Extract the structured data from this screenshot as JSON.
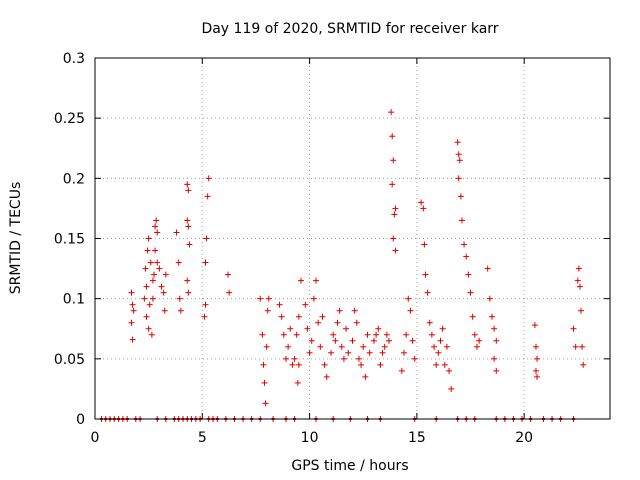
{
  "chart_data": {
    "type": "scatter",
    "title": "Day 119 of 2020, SRMTID for receiver karr",
    "xlabel": "GPS time / hours",
    "ylabel": "SRMTID / TECUs",
    "xlim": [
      0,
      24
    ],
    "ylim": [
      0,
      0.3
    ],
    "xticks": [
      0,
      5,
      10,
      15,
      20
    ],
    "xtick_labels": [
      "0",
      "5",
      "10",
      "15",
      "20"
    ],
    "yticks": [
      0,
      0.05,
      0.1,
      0.15,
      0.2,
      0.25,
      0.3
    ],
    "ytick_labels": [
      "0",
      "0.05",
      "0.1",
      "0.15",
      "0.2",
      "0.25",
      "0.3"
    ],
    "grid": true,
    "marker": "+",
    "color": "#e00000",
    "series": [
      {
        "name": "SRMTID",
        "points": [
          [
            1.7,
            0.105
          ],
          [
            1.75,
            0.095
          ],
          [
            1.7,
            0.08
          ],
          [
            1.75,
            0.066
          ],
          [
            1.8,
            0.09
          ],
          [
            2.3,
            0.1
          ],
          [
            2.4,
            0.11
          ],
          [
            2.35,
            0.125
          ],
          [
            2.45,
            0.14
          ],
          [
            2.5,
            0.15
          ],
          [
            2.4,
            0.085
          ],
          [
            2.5,
            0.075
          ],
          [
            2.55,
            0.095
          ],
          [
            2.6,
            0.13
          ],
          [
            2.7,
            0.115
          ],
          [
            2.75,
            0.12
          ],
          [
            2.8,
            0.16
          ],
          [
            2.85,
            0.165
          ],
          [
            2.9,
            0.155
          ],
          [
            2.8,
            0.14
          ],
          [
            2.7,
            0.1
          ],
          [
            2.65,
            0.07
          ],
          [
            2.9,
            0.13
          ],
          [
            3.0,
            0.125
          ],
          [
            3.1,
            0.11
          ],
          [
            3.2,
            0.105
          ],
          [
            3.25,
            0.09
          ],
          [
            3.3,
            0.12
          ],
          [
            3.8,
            0.155
          ],
          [
            3.9,
            0.13
          ],
          [
            4.0,
            0.09
          ],
          [
            3.95,
            0.1
          ],
          [
            4.3,
            0.195
          ],
          [
            4.35,
            0.19
          ],
          [
            4.3,
            0.165
          ],
          [
            4.35,
            0.16
          ],
          [
            4.4,
            0.145
          ],
          [
            4.3,
            0.115
          ],
          [
            4.35,
            0.105
          ],
          [
            5.1,
            0.085
          ],
          [
            5.15,
            0.095
          ],
          [
            5.2,
            0.15
          ],
          [
            5.25,
            0.185
          ],
          [
            5.3,
            0.2
          ],
          [
            5.15,
            0.13
          ],
          [
            6.2,
            0.12
          ],
          [
            6.25,
            0.105
          ],
          [
            7.7,
            0.1
          ],
          [
            7.8,
            0.07
          ],
          [
            7.85,
            0.045
          ],
          [
            7.9,
            0.03
          ],
          [
            7.95,
            0.013
          ],
          [
            8.0,
            0.06
          ],
          [
            8.05,
            0.09
          ],
          [
            8.1,
            0.1
          ],
          [
            8.6,
            0.095
          ],
          [
            8.7,
            0.085
          ],
          [
            8.8,
            0.07
          ],
          [
            8.9,
            0.05
          ],
          [
            9.0,
            0.06
          ],
          [
            9.1,
            0.075
          ],
          [
            9.2,
            0.045
          ],
          [
            9.3,
            0.05
          ],
          [
            9.4,
            0.07
          ],
          [
            9.5,
            0.085
          ],
          [
            9.6,
            0.115
          ],
          [
            9.5,
            0.045
          ],
          [
            9.45,
            0.03
          ],
          [
            9.8,
            0.095
          ],
          [
            9.9,
            0.075
          ],
          [
            10.0,
            0.055
          ],
          [
            10.1,
            0.065
          ],
          [
            10.2,
            0.1
          ],
          [
            10.3,
            0.115
          ],
          [
            10.4,
            0.08
          ],
          [
            10.5,
            0.06
          ],
          [
            10.6,
            0.085
          ],
          [
            10.7,
            0.045
          ],
          [
            10.8,
            0.035
          ],
          [
            11.0,
            0.055
          ],
          [
            11.1,
            0.07
          ],
          [
            11.2,
            0.065
          ],
          [
            11.3,
            0.08
          ],
          [
            11.4,
            0.09
          ],
          [
            11.5,
            0.06
          ],
          [
            11.6,
            0.05
          ],
          [
            11.7,
            0.075
          ],
          [
            11.8,
            0.055
          ],
          [
            12.0,
            0.065
          ],
          [
            12.1,
            0.09
          ],
          [
            12.2,
            0.08
          ],
          [
            12.3,
            0.05
          ],
          [
            12.4,
            0.045
          ],
          [
            12.5,
            0.06
          ],
          [
            12.6,
            0.035
          ],
          [
            12.7,
            0.07
          ],
          [
            12.8,
            0.055
          ],
          [
            13.0,
            0.065
          ],
          [
            13.1,
            0.07
          ],
          [
            13.2,
            0.075
          ],
          [
            13.3,
            0.045
          ],
          [
            13.4,
            0.055
          ],
          [
            13.5,
            0.06
          ],
          [
            13.6,
            0.07
          ],
          [
            13.7,
            0.065
          ],
          [
            13.8,
            0.255
          ],
          [
            13.85,
            0.235
          ],
          [
            13.9,
            0.215
          ],
          [
            13.85,
            0.195
          ],
          [
            13.95,
            0.17
          ],
          [
            14.0,
            0.175
          ],
          [
            13.9,
            0.15
          ],
          [
            14.0,
            0.14
          ],
          [
            14.3,
            0.04
          ],
          [
            14.4,
            0.055
          ],
          [
            14.5,
            0.07
          ],
          [
            14.6,
            0.1
          ],
          [
            14.7,
            0.09
          ],
          [
            14.8,
            0.065
          ],
          [
            14.9,
            0.05
          ],
          [
            15.2,
            0.18
          ],
          [
            15.3,
            0.175
          ],
          [
            15.35,
            0.145
          ],
          [
            15.4,
            0.12
          ],
          [
            15.5,
            0.105
          ],
          [
            15.6,
            0.08
          ],
          [
            15.7,
            0.07
          ],
          [
            15.8,
            0.06
          ],
          [
            15.9,
            0.045
          ],
          [
            16.0,
            0.055
          ],
          [
            16.1,
            0.065
          ],
          [
            16.2,
            0.075
          ],
          [
            16.3,
            0.045
          ],
          [
            16.4,
            0.06
          ],
          [
            16.5,
            0.04
          ],
          [
            16.6,
            0.025
          ],
          [
            16.9,
            0.23
          ],
          [
            16.95,
            0.22
          ],
          [
            17.0,
            0.215
          ],
          [
            16.95,
            0.2
          ],
          [
            17.05,
            0.185
          ],
          [
            17.1,
            0.165
          ],
          [
            17.2,
            0.145
          ],
          [
            17.3,
            0.135
          ],
          [
            17.4,
            0.12
          ],
          [
            17.5,
            0.105
          ],
          [
            17.6,
            0.085
          ],
          [
            17.7,
            0.07
          ],
          [
            17.8,
            0.06
          ],
          [
            17.9,
            0.065
          ],
          [
            18.3,
            0.125
          ],
          [
            18.4,
            0.1
          ],
          [
            18.5,
            0.085
          ],
          [
            18.6,
            0.075
          ],
          [
            18.7,
            0.065
          ],
          [
            18.6,
            0.05
          ],
          [
            18.7,
            0.04
          ],
          [
            20.5,
            0.078
          ],
          [
            20.55,
            0.06
          ],
          [
            20.6,
            0.05
          ],
          [
            20.55,
            0.04
          ],
          [
            20.6,
            0.035
          ],
          [
            22.3,
            0.075
          ],
          [
            22.4,
            0.06
          ],
          [
            22.5,
            0.115
          ],
          [
            22.55,
            0.125
          ],
          [
            22.6,
            0.11
          ],
          [
            22.65,
            0.09
          ],
          [
            22.7,
            0.06
          ],
          [
            22.75,
            0.045
          ]
        ],
        "zero_times": [
          0.3,
          0.5,
          0.7,
          0.9,
          1.1,
          1.3,
          1.5,
          1.9,
          2.1,
          2.9,
          3.3,
          3.7,
          3.9,
          4.1,
          4.3,
          4.5,
          4.7,
          4.9,
          5.3,
          5.5,
          5.7,
          6.1,
          6.5,
          6.9,
          7.3,
          7.7,
          8.3,
          8.9,
          9.3,
          10.3,
          11.1,
          11.9,
          12.7,
          13.3,
          14.9,
          15.9,
          16.9,
          17.3,
          17.7,
          18.7,
          19.1,
          19.5,
          19.9,
          20.3,
          20.9,
          21.3,
          21.7,
          22.3
        ]
      }
    ]
  }
}
